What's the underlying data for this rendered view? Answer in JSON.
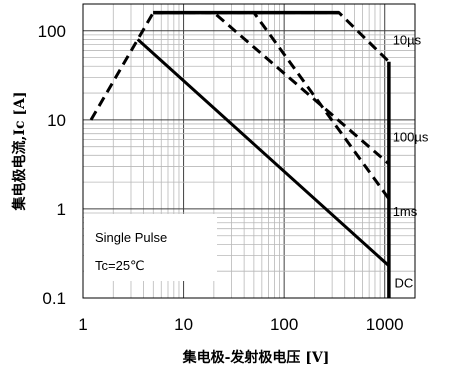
{
  "chart_data": {
    "type": "line",
    "title": "",
    "xlabel": "集电极-发射极电压 [V]",
    "ylabel": "集电极电流,Ic [A]",
    "x_scale": "log",
    "y_scale": "log",
    "xlim": [
      1,
      2000
    ],
    "ylim": [
      0.1,
      200
    ],
    "x_ticks": [
      {
        "value": 1,
        "label": "1"
      },
      {
        "value": 10,
        "label": "10"
      },
      {
        "value": 100,
        "label": "100"
      },
      {
        "value": 1000,
        "label": "1000"
      }
    ],
    "y_ticks": [
      {
        "value": 0.1,
        "label": "0.1"
      },
      {
        "value": 1,
        "label": "1"
      },
      {
        "value": 10,
        "label": "10"
      },
      {
        "value": 100,
        "label": "100"
      }
    ],
    "grid": true,
    "series": [
      {
        "name": "DC",
        "style": "solid",
        "points": [
          [
            3.5,
            80
          ],
          [
            1100,
            0.23
          ]
        ]
      },
      {
        "name": "1ms",
        "style": "dashed",
        "points": [
          [
            5,
            160
          ],
          [
            50,
            160
          ],
          [
            1100,
            1.3
          ]
        ]
      },
      {
        "name": "100µs",
        "style": "dashed",
        "points": [
          [
            5,
            160
          ],
          [
            20,
            160
          ],
          [
            1100,
            3.2
          ]
        ]
      },
      {
        "name": "10µs",
        "style": "dashed",
        "points": [
          [
            1.2,
            10
          ],
          [
            5,
            160
          ],
          [
            350,
            160
          ],
          [
            1100,
            45
          ]
        ]
      }
    ],
    "limit_lines": [
      {
        "style": "thick-solid",
        "points": [
          [
            5,
            160
          ],
          [
            350,
            160
          ]
        ]
      },
      {
        "style": "thick-solid",
        "points": [
          [
            1100,
            0.1
          ],
          [
            1100,
            45
          ]
        ]
      }
    ],
    "curve_labels": [
      {
        "text": "10µs",
        "x": 1200,
        "y": 80
      },
      {
        "text": "100µs",
        "x": 1200,
        "y": 6.5
      },
      {
        "text": "1ms",
        "x": 1200,
        "y": 0.95
      },
      {
        "text": "DC",
        "x": 1250,
        "y": 0.15
      }
    ],
    "annotations": [
      "Single Pulse",
      "Tc=25℃"
    ],
    "colors": {
      "line": "#000000",
      "grid_minor": "#b8b8b8",
      "grid_major": "#404040",
      "background": "#ffffff"
    }
  }
}
